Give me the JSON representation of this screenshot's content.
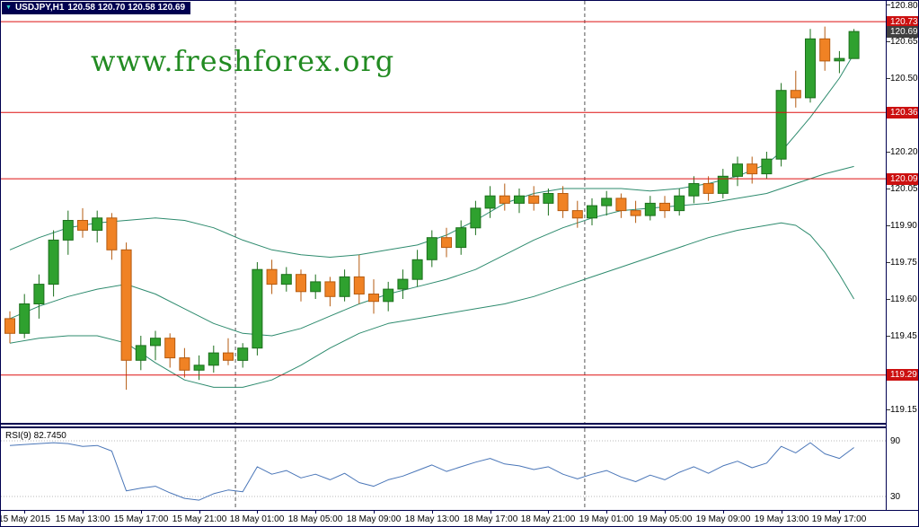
{
  "window": {
    "symbol": "USDJPY,H1",
    "ohlc": "120.58 120.70 120.58 120.69"
  },
  "watermark": {
    "text": "www.freshforex.org",
    "color": "#228B22"
  },
  "colors": {
    "bull_fill": "#2fa12f",
    "bull_stroke": "#1c6f1c",
    "bear_fill": "#f08224",
    "bear_stroke": "#b55b10",
    "band": "#2e8b6e",
    "hline": "#dd1111",
    "day_separator": "#555555",
    "rsi_line": "#4a76b8",
    "rsi_level": "#b8b8b8",
    "badge_red": "#cc1010",
    "badge_dark": "#404040"
  },
  "chart_data": {
    "type": "candlestick",
    "symbol": "USDJPY",
    "timeframe": "H1",
    "price_axis": {
      "ticks": [
        "120.80",
        "120.65",
        "120.50",
        "120.20",
        "120.05",
        "119.90",
        "119.75",
        "119.60",
        "119.45",
        "119.15"
      ],
      "range": [
        119.1,
        120.82
      ]
    },
    "badges": [
      {
        "text": "120.73",
        "style": "red"
      },
      {
        "text": "120.69",
        "style": "dark"
      },
      {
        "text": "120.36",
        "style": "red"
      },
      {
        "text": "120.09",
        "style": "red"
      },
      {
        "text": "119.29",
        "style": "red"
      }
    ],
    "hlines": [
      120.73,
      120.36,
      120.09,
      119.29
    ],
    "day_separators": [
      16,
      40
    ],
    "time_labels": [
      {
        "i": 1,
        "text": "15 May 2015"
      },
      {
        "i": 5,
        "text": "15 May 13:00"
      },
      {
        "i": 9,
        "text": "15 May 17:00"
      },
      {
        "i": 13,
        "text": "15 May 21:00"
      },
      {
        "i": 17,
        "text": "18 May 01:00"
      },
      {
        "i": 21,
        "text": "18 May 05:00"
      },
      {
        "i": 25,
        "text": "18 May 09:00"
      },
      {
        "i": 29,
        "text": "18 May 13:00"
      },
      {
        "i": 33,
        "text": "18 May 17:00"
      },
      {
        "i": 37,
        "text": "18 May 21:00"
      },
      {
        "i": 41,
        "text": "19 May 01:00"
      },
      {
        "i": 45,
        "text": "19 May 05:00"
      },
      {
        "i": 49,
        "text": "19 May 09:00"
      },
      {
        "i": 53,
        "text": "19 May 13:00"
      },
      {
        "i": 57,
        "text": "19 May 17:00"
      }
    ],
    "candles": [
      [
        119.52,
        119.55,
        119.42,
        119.46
      ],
      [
        119.46,
        119.62,
        119.44,
        119.58
      ],
      [
        119.58,
        119.7,
        119.52,
        119.66
      ],
      [
        119.66,
        119.88,
        119.61,
        119.84
      ],
      [
        119.84,
        119.96,
        119.78,
        119.92
      ],
      [
        119.92,
        119.97,
        119.85,
        119.88
      ],
      [
        119.88,
        119.96,
        119.83,
        119.93
      ],
      [
        119.93,
        119.95,
        119.76,
        119.8
      ],
      [
        119.8,
        119.83,
        119.23,
        119.35
      ],
      [
        119.35,
        119.45,
        119.31,
        119.41
      ],
      [
        119.41,
        119.47,
        119.35,
        119.44
      ],
      [
        119.44,
        119.46,
        119.32,
        119.36
      ],
      [
        119.36,
        119.4,
        119.28,
        119.31
      ],
      [
        119.31,
        119.37,
        119.27,
        119.33
      ],
      [
        119.33,
        119.41,
        119.3,
        119.38
      ],
      [
        119.38,
        119.44,
        119.33,
        119.35
      ],
      [
        119.35,
        119.42,
        119.32,
        119.4
      ],
      [
        119.4,
        119.75,
        119.37,
        119.72
      ],
      [
        119.72,
        119.76,
        119.62,
        119.66
      ],
      [
        119.66,
        119.73,
        119.63,
        119.7
      ],
      [
        119.7,
        119.72,
        119.59,
        119.63
      ],
      [
        119.63,
        119.7,
        119.6,
        119.67
      ],
      [
        119.67,
        119.69,
        119.57,
        119.61
      ],
      [
        119.61,
        119.72,
        119.59,
        119.69
      ],
      [
        119.69,
        119.78,
        119.58,
        119.62
      ],
      [
        119.62,
        119.68,
        119.54,
        119.59
      ],
      [
        119.59,
        119.67,
        119.55,
        119.64
      ],
      [
        119.64,
        119.72,
        119.6,
        119.68
      ],
      [
        119.68,
        119.8,
        119.65,
        119.76
      ],
      [
        119.76,
        119.88,
        119.73,
        119.85
      ],
      [
        119.85,
        119.89,
        119.77,
        119.81
      ],
      [
        119.81,
        119.92,
        119.78,
        119.89
      ],
      [
        119.89,
        120.0,
        119.86,
        119.97
      ],
      [
        119.97,
        120.06,
        119.93,
        120.02
      ],
      [
        120.02,
        120.07,
        119.96,
        119.99
      ],
      [
        119.99,
        120.05,
        119.95,
        120.02
      ],
      [
        120.02,
        120.06,
        119.96,
        119.99
      ],
      [
        119.99,
        120.05,
        119.94,
        120.03
      ],
      [
        120.03,
        120.06,
        119.93,
        119.96
      ],
      [
        119.96,
        120.0,
        119.89,
        119.93
      ],
      [
        119.93,
        120.01,
        119.9,
        119.98
      ],
      [
        119.98,
        120.04,
        119.94,
        120.01
      ],
      [
        120.01,
        120.03,
        119.93,
        119.96
      ],
      [
        119.96,
        120.0,
        119.91,
        119.94
      ],
      [
        119.94,
        120.02,
        119.92,
        119.99
      ],
      [
        119.99,
        120.02,
        119.93,
        119.96
      ],
      [
        119.96,
        120.05,
        119.94,
        120.02
      ],
      [
        120.02,
        120.1,
        119.99,
        120.07
      ],
      [
        120.07,
        120.1,
        120.0,
        120.03
      ],
      [
        120.03,
        120.13,
        120.01,
        120.1
      ],
      [
        120.1,
        120.18,
        120.06,
        120.15
      ],
      [
        120.15,
        120.18,
        120.07,
        120.11
      ],
      [
        120.11,
        120.2,
        120.09,
        120.17
      ],
      [
        120.17,
        120.48,
        120.14,
        120.45
      ],
      [
        120.45,
        120.53,
        120.38,
        120.42
      ],
      [
        120.42,
        120.7,
        120.4,
        120.66
      ],
      [
        120.66,
        120.71,
        120.53,
        120.57
      ],
      [
        120.57,
        120.61,
        120.52,
        120.58
      ],
      [
        120.58,
        120.7,
        120.58,
        120.69
      ]
    ],
    "bands": {
      "upper": [
        [
          0,
          119.8
        ],
        [
          2,
          119.85
        ],
        [
          4,
          119.89
        ],
        [
          6,
          119.91
        ],
        [
          8,
          119.92
        ],
        [
          10,
          119.93
        ],
        [
          12,
          119.92
        ],
        [
          14,
          119.89
        ],
        [
          16,
          119.84
        ],
        [
          18,
          119.8
        ],
        [
          20,
          119.78
        ],
        [
          22,
          119.77
        ],
        [
          24,
          119.78
        ],
        [
          26,
          119.8
        ],
        [
          28,
          119.82
        ],
        [
          30,
          119.86
        ],
        [
          32,
          119.92
        ],
        [
          34,
          119.99
        ],
        [
          36,
          120.03
        ],
        [
          38,
          120.05
        ],
        [
          40,
          120.05
        ],
        [
          42,
          120.05
        ],
        [
          44,
          120.04
        ],
        [
          46,
          120.05
        ],
        [
          48,
          120.07
        ],
        [
          50,
          120.1
        ],
        [
          52,
          120.15
        ],
        [
          53,
          120.2
        ],
        [
          54,
          120.27
        ],
        [
          55,
          120.34
        ],
        [
          56,
          120.42
        ],
        [
          57,
          120.5
        ],
        [
          58,
          120.6
        ]
      ],
      "middle": [
        [
          0,
          119.52
        ],
        [
          2,
          119.57
        ],
        [
          4,
          119.61
        ],
        [
          6,
          119.64
        ],
        [
          8,
          119.66
        ],
        [
          10,
          119.62
        ],
        [
          12,
          119.56
        ],
        [
          14,
          119.5
        ],
        [
          16,
          119.46
        ],
        [
          18,
          119.45
        ],
        [
          20,
          119.48
        ],
        [
          22,
          119.53
        ],
        [
          24,
          119.58
        ],
        [
          26,
          119.62
        ],
        [
          28,
          119.65
        ],
        [
          30,
          119.68
        ],
        [
          32,
          119.72
        ],
        [
          34,
          119.78
        ],
        [
          36,
          119.84
        ],
        [
          38,
          119.89
        ],
        [
          40,
          119.93
        ],
        [
          42,
          119.96
        ],
        [
          44,
          119.97
        ],
        [
          46,
          119.98
        ],
        [
          48,
          119.99
        ],
        [
          50,
          120.01
        ],
        [
          52,
          120.03
        ],
        [
          54,
          120.07
        ],
        [
          56,
          120.11
        ],
        [
          58,
          120.14
        ]
      ],
      "lower": [
        [
          0,
          119.42
        ],
        [
          2,
          119.44
        ],
        [
          4,
          119.45
        ],
        [
          6,
          119.45
        ],
        [
          8,
          119.42
        ],
        [
          10,
          119.34
        ],
        [
          12,
          119.27
        ],
        [
          14,
          119.24
        ],
        [
          16,
          119.24
        ],
        [
          18,
          119.27
        ],
        [
          20,
          119.33
        ],
        [
          22,
          119.4
        ],
        [
          24,
          119.46
        ],
        [
          26,
          119.5
        ],
        [
          28,
          119.52
        ],
        [
          30,
          119.54
        ],
        [
          32,
          119.56
        ],
        [
          34,
          119.58
        ],
        [
          36,
          119.61
        ],
        [
          38,
          119.65
        ],
        [
          40,
          119.69
        ],
        [
          42,
          119.73
        ],
        [
          44,
          119.77
        ],
        [
          46,
          119.81
        ],
        [
          48,
          119.85
        ],
        [
          50,
          119.88
        ],
        [
          52,
          119.9
        ],
        [
          53,
          119.91
        ],
        [
          54,
          119.9
        ],
        [
          55,
          119.86
        ],
        [
          56,
          119.79
        ],
        [
          57,
          119.7
        ],
        [
          58,
          119.6
        ]
      ]
    }
  },
  "rsi": {
    "label": "RSI(9) 82.7450",
    "period": 9,
    "value": "82.7450",
    "levels": [
      "90",
      "30"
    ],
    "values": [
      85,
      86,
      87,
      88,
      87,
      84,
      85,
      79,
      36,
      39,
      41,
      34,
      28,
      26,
      33,
      37,
      35,
      62,
      54,
      58,
      50,
      54,
      48,
      55,
      45,
      41,
      48,
      52,
      58,
      64,
      57,
      62,
      67,
      71,
      65,
      63,
      59,
      62,
      54,
      49,
      54,
      58,
      51,
      46,
      53,
      48,
      56,
      62,
      55,
      63,
      68,
      61,
      66,
      84,
      77,
      88,
      76,
      71,
      82.7
    ]
  }
}
